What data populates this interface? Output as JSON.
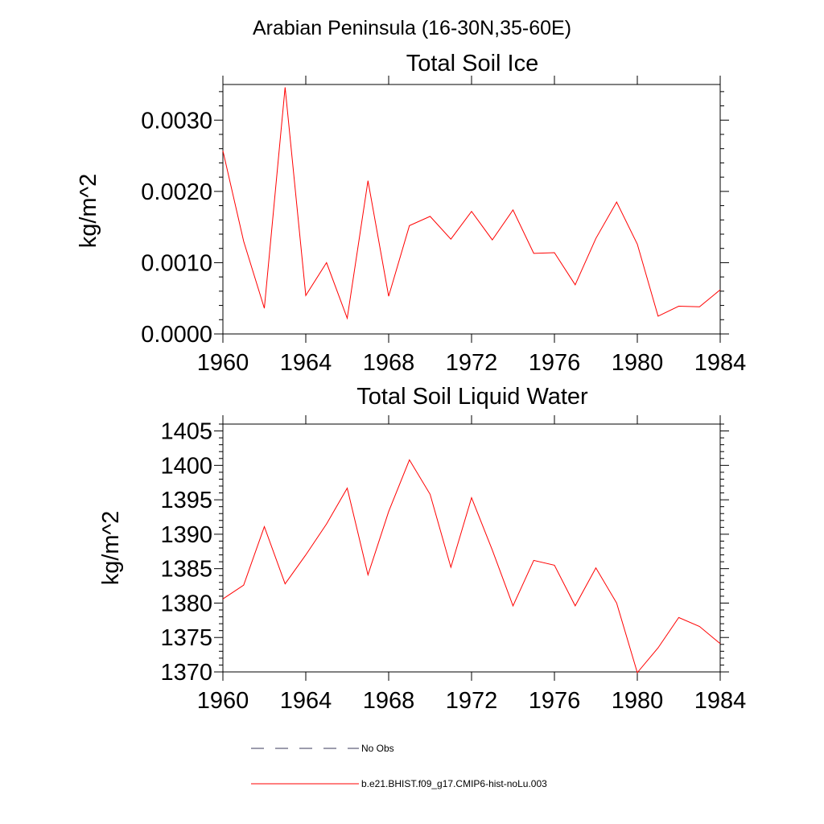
{
  "figure": {
    "title": "Arabian Peninsula (16-30N,35-60E)"
  },
  "chart_data": [
    {
      "type": "line",
      "title": "Total Soil Ice",
      "xlabel": "",
      "ylabel": "kg/m^2",
      "xlim": [
        1960,
        1984
      ],
      "ylim": [
        0,
        0.0035
      ],
      "xticks": [
        1960,
        1964,
        1968,
        1972,
        1976,
        1980,
        1984
      ],
      "xtick_labels": [
        "1960",
        "1964",
        "1968",
        "1972",
        "1976",
        "1980",
        "1984"
      ],
      "yticks": [
        0,
        0.001,
        0.002,
        0.003
      ],
      "ytick_labels": [
        "0.0000",
        "0.0010",
        "0.0020",
        "0.0030"
      ],
      "x": [
        1960,
        1961,
        1962,
        1963,
        1964,
        1965,
        1966,
        1967,
        1968,
        1969,
        1970,
        1971,
        1972,
        1973,
        1974,
        1975,
        1976,
        1977,
        1978,
        1979,
        1980,
        1981,
        1982,
        1983,
        1984
      ],
      "series": [
        {
          "name": "b.e21.BHIST.f09_g17.CMIP6-hist-noLu.003",
          "color": "#ff0000",
          "values": [
            0.00257,
            0.0013,
            0.00036,
            0.00346,
            0.00054,
            0.001,
            0.00022,
            0.00215,
            0.00053,
            0.00152,
            0.00165,
            0.00133,
            0.00172,
            0.00132,
            0.00174,
            0.00113,
            0.00114,
            0.00069,
            0.00134,
            0.00185,
            0.00126,
            0.00025,
            0.00039,
            0.00038,
            0.00062
          ]
        }
      ]
    },
    {
      "type": "line",
      "title": "Total Soil Liquid Water",
      "xlabel": "",
      "ylabel": "kg/m^2",
      "xlim": [
        1960,
        1984
      ],
      "ylim": [
        1370,
        1406
      ],
      "xticks": [
        1960,
        1964,
        1968,
        1972,
        1976,
        1980,
        1984
      ],
      "xtick_labels": [
        "1960",
        "1964",
        "1968",
        "1972",
        "1976",
        "1980",
        "1984"
      ],
      "yticks": [
        1370,
        1375,
        1380,
        1385,
        1390,
        1395,
        1400,
        1405
      ],
      "ytick_labels": [
        "1370",
        "1375",
        "1380",
        "1385",
        "1390",
        "1395",
        "1400",
        "1405"
      ],
      "x": [
        1960,
        1961,
        1962,
        1963,
        1964,
        1965,
        1966,
        1967,
        1968,
        1969,
        1970,
        1971,
        1972,
        1973,
        1974,
        1975,
        1976,
        1977,
        1978,
        1979,
        1980,
        1981,
        1982,
        1983,
        1984
      ],
      "series": [
        {
          "name": "b.e21.BHIST.f09_g17.CMIP6-hist-noLu.003",
          "color": "#ff0000",
          "values": [
            1380.6,
            1382.6,
            1391.1,
            1382.8,
            1387.0,
            1391.5,
            1396.7,
            1384.1,
            1393.3,
            1400.8,
            1395.8,
            1385.2,
            1395.3,
            1387.7,
            1379.6,
            1386.2,
            1385.5,
            1379.6,
            1385.1,
            1380.0,
            1369.9,
            1373.5,
            1377.9,
            1376.6,
            1374.1
          ]
        }
      ]
    }
  ],
  "legend": [
    {
      "label": "No Obs",
      "style": "dashed",
      "color": "#3a3a5a"
    },
    {
      "label": "b.e21.BHIST.f09_g17.CMIP6-hist-noLu.003",
      "style": "solid",
      "color": "#ff0000"
    }
  ]
}
